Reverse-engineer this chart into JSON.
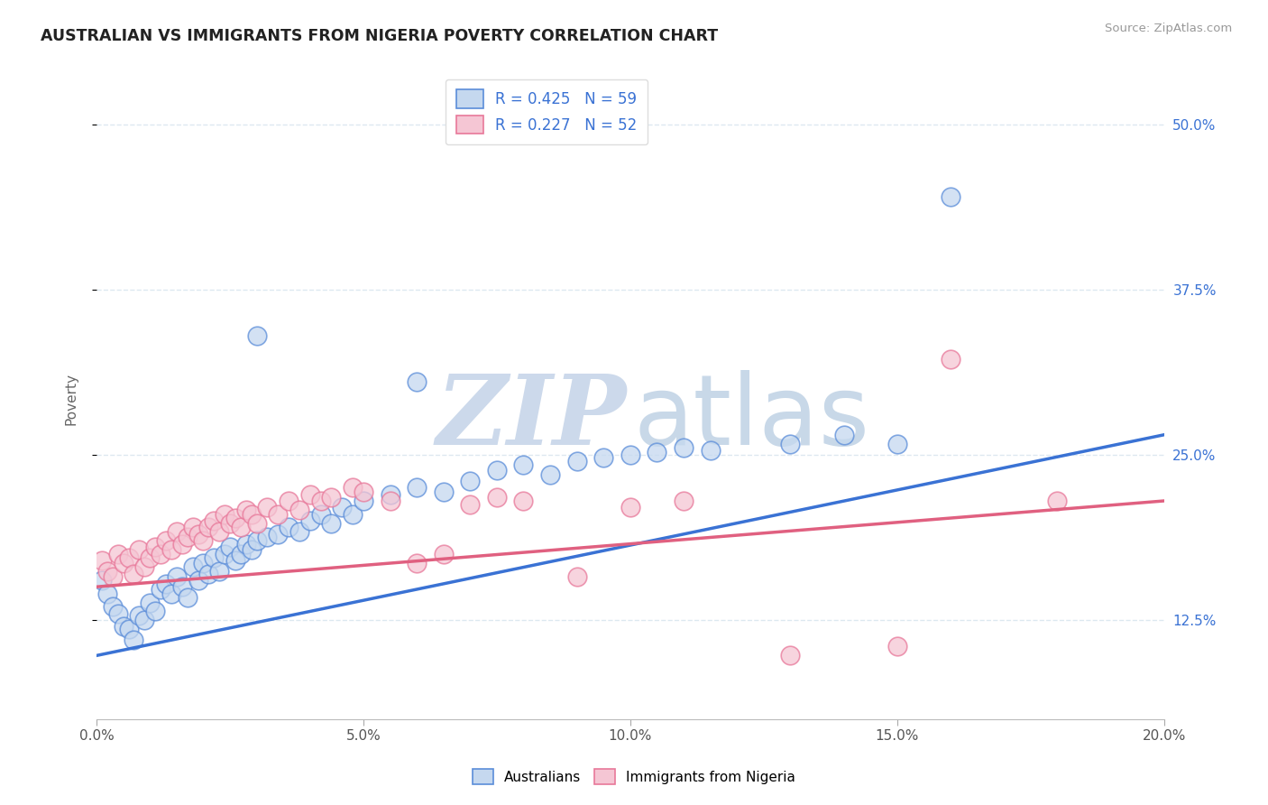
{
  "title": "AUSTRALIAN VS IMMIGRANTS FROM NIGERIA POVERTY CORRELATION CHART",
  "source": "Source: ZipAtlas.com",
  "ylabel": "Poverty",
  "legend_labels": [
    "Australians",
    "Immigrants from Nigeria"
  ],
  "r_blue": 0.425,
  "n_blue": 59,
  "r_pink": 0.227,
  "n_pink": 52,
  "blue_fill": "#c5d8ef",
  "pink_fill": "#f5c6d4",
  "blue_edge": "#5b8dd9",
  "pink_edge": "#e8789a",
  "blue_line_color": "#3a72d4",
  "pink_line_color": "#e06080",
  "blue_scatter": [
    [
      0.001,
      0.155
    ],
    [
      0.002,
      0.145
    ],
    [
      0.003,
      0.135
    ],
    [
      0.004,
      0.13
    ],
    [
      0.005,
      0.12
    ],
    [
      0.006,
      0.118
    ],
    [
      0.007,
      0.11
    ],
    [
      0.008,
      0.128
    ],
    [
      0.009,
      0.125
    ],
    [
      0.01,
      0.138
    ],
    [
      0.011,
      0.132
    ],
    [
      0.012,
      0.148
    ],
    [
      0.013,
      0.152
    ],
    [
      0.014,
      0.145
    ],
    [
      0.015,
      0.158
    ],
    [
      0.016,
      0.15
    ],
    [
      0.017,
      0.142
    ],
    [
      0.018,
      0.165
    ],
    [
      0.019,
      0.155
    ],
    [
      0.02,
      0.168
    ],
    [
      0.021,
      0.16
    ],
    [
      0.022,
      0.172
    ],
    [
      0.023,
      0.162
    ],
    [
      0.024,
      0.175
    ],
    [
      0.025,
      0.18
    ],
    [
      0.026,
      0.17
    ],
    [
      0.027,
      0.175
    ],
    [
      0.028,
      0.182
    ],
    [
      0.029,
      0.178
    ],
    [
      0.03,
      0.185
    ],
    [
      0.032,
      0.188
    ],
    [
      0.034,
      0.19
    ],
    [
      0.036,
      0.195
    ],
    [
      0.038,
      0.192
    ],
    [
      0.04,
      0.2
    ],
    [
      0.042,
      0.205
    ],
    [
      0.044,
      0.198
    ],
    [
      0.046,
      0.21
    ],
    [
      0.048,
      0.205
    ],
    [
      0.05,
      0.215
    ],
    [
      0.055,
      0.22
    ],
    [
      0.06,
      0.225
    ],
    [
      0.065,
      0.222
    ],
    [
      0.07,
      0.23
    ],
    [
      0.075,
      0.238
    ],
    [
      0.08,
      0.242
    ],
    [
      0.085,
      0.235
    ],
    [
      0.09,
      0.245
    ],
    [
      0.095,
      0.248
    ],
    [
      0.1,
      0.25
    ],
    [
      0.105,
      0.252
    ],
    [
      0.11,
      0.255
    ],
    [
      0.115,
      0.253
    ],
    [
      0.13,
      0.258
    ],
    [
      0.14,
      0.265
    ],
    [
      0.15,
      0.258
    ],
    [
      0.16,
      0.445
    ],
    [
      0.03,
      0.34
    ],
    [
      0.06,
      0.305
    ]
  ],
  "pink_scatter": [
    [
      0.001,
      0.17
    ],
    [
      0.002,
      0.162
    ],
    [
      0.003,
      0.158
    ],
    [
      0.004,
      0.175
    ],
    [
      0.005,
      0.168
    ],
    [
      0.006,
      0.172
    ],
    [
      0.007,
      0.16
    ],
    [
      0.008,
      0.178
    ],
    [
      0.009,
      0.165
    ],
    [
      0.01,
      0.172
    ],
    [
      0.011,
      0.18
    ],
    [
      0.012,
      0.175
    ],
    [
      0.013,
      0.185
    ],
    [
      0.014,
      0.178
    ],
    [
      0.015,
      0.192
    ],
    [
      0.016,
      0.182
    ],
    [
      0.017,
      0.188
    ],
    [
      0.018,
      0.195
    ],
    [
      0.019,
      0.19
    ],
    [
      0.02,
      0.185
    ],
    [
      0.021,
      0.195
    ],
    [
      0.022,
      0.2
    ],
    [
      0.023,
      0.192
    ],
    [
      0.024,
      0.205
    ],
    [
      0.025,
      0.198
    ],
    [
      0.026,
      0.202
    ],
    [
      0.027,
      0.195
    ],
    [
      0.028,
      0.208
    ],
    [
      0.029,
      0.205
    ],
    [
      0.03,
      0.198
    ],
    [
      0.032,
      0.21
    ],
    [
      0.034,
      0.205
    ],
    [
      0.036,
      0.215
    ],
    [
      0.038,
      0.208
    ],
    [
      0.04,
      0.22
    ],
    [
      0.042,
      0.215
    ],
    [
      0.044,
      0.218
    ],
    [
      0.048,
      0.225
    ],
    [
      0.05,
      0.222
    ],
    [
      0.055,
      0.215
    ],
    [
      0.06,
      0.168
    ],
    [
      0.065,
      0.175
    ],
    [
      0.07,
      0.212
    ],
    [
      0.075,
      0.218
    ],
    [
      0.08,
      0.215
    ],
    [
      0.09,
      0.158
    ],
    [
      0.1,
      0.21
    ],
    [
      0.11,
      0.215
    ],
    [
      0.13,
      0.098
    ],
    [
      0.15,
      0.105
    ],
    [
      0.16,
      0.322
    ],
    [
      0.18,
      0.215
    ]
  ],
  "blue_line": [
    0.0,
    0.2,
    0.098,
    0.265
  ],
  "pink_line": [
    0.0,
    0.2,
    0.15,
    0.215
  ],
  "xlim": [
    0.0,
    0.2
  ],
  "ylim": [
    0.05,
    0.535
  ],
  "yticks": [
    0.125,
    0.25,
    0.375,
    0.5
  ],
  "xticks": [
    0.0,
    0.05,
    0.1,
    0.15,
    0.2
  ],
  "watermark_zip_color": "#ccd9eb",
  "watermark_atlas_color": "#c8d8e8",
  "background_color": "#ffffff",
  "grid_color": "#dde8f0"
}
